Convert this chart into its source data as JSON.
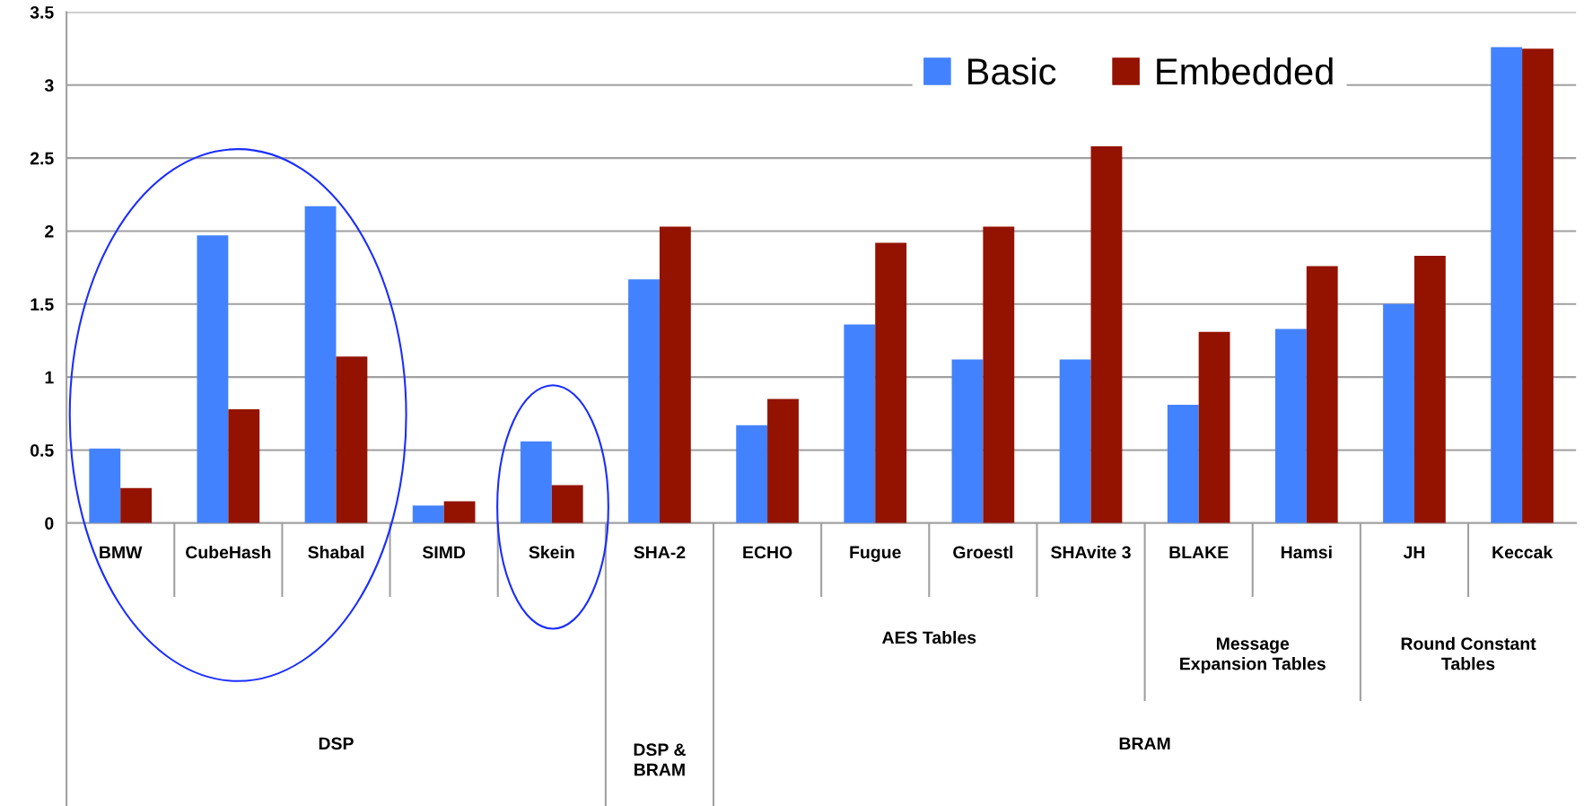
{
  "chart_data": {
    "type": "bar",
    "categories": [
      "BMW",
      "CubeHash",
      "Shabal",
      "SIMD",
      "Skein",
      "SHA-2",
      "ECHO",
      "Fugue",
      "Groestl",
      "SHAvite 3",
      "BLAKE",
      "Hamsi",
      "JH",
      "Keccak"
    ],
    "series": [
      {
        "name": "Basic",
        "color": "#4282fe",
        "values": [
          0.51,
          1.97,
          2.17,
          0.12,
          0.56,
          1.67,
          0.67,
          1.36,
          1.12,
          1.12,
          0.81,
          1.33,
          1.5,
          3.26
        ]
      },
      {
        "name": "Embedded",
        "color": "#941200",
        "values": [
          0.24,
          0.78,
          1.14,
          0.15,
          0.26,
          2.03,
          0.85,
          1.92,
          2.03,
          2.58,
          1.31,
          1.76,
          1.83,
          3.25
        ]
      }
    ],
    "ylim": [
      0,
      3.5
    ],
    "yticks": [
      0,
      0.5,
      1,
      1.5,
      2,
      2.5,
      3,
      3.5
    ],
    "grid": "y",
    "legend": "top right",
    "annotations": [
      "AES Tables",
      "Message\nExpansion Tables",
      "Round Constant\nTables",
      "DSP",
      "DSP &\nBRAM",
      "BRAM"
    ]
  }
}
